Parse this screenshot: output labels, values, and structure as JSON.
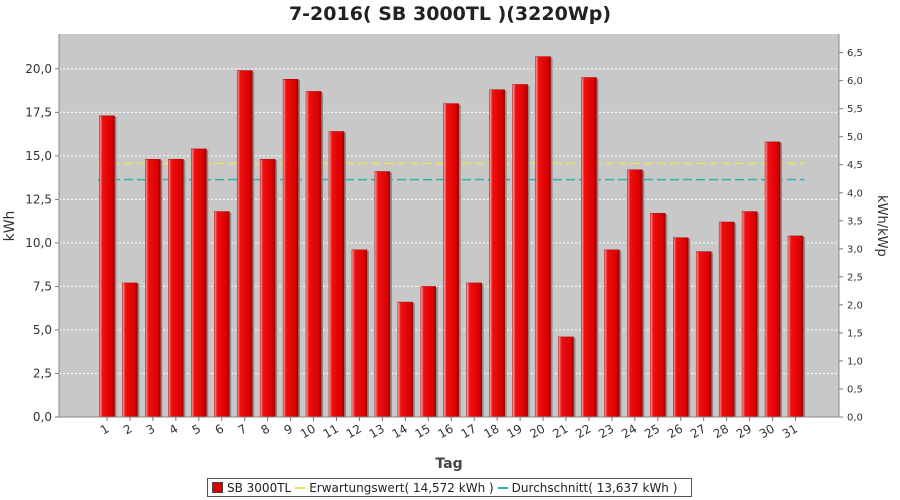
{
  "chart_data": {
    "type": "bar",
    "title": "7-2016( SB 3000TL )(3220Wp)",
    "xlabel": "Tag",
    "ylabel": "kWh",
    "y2label": "kWh/kWp",
    "categories": [
      "1",
      "2",
      "3",
      "4",
      "5",
      "6",
      "7",
      "8",
      "9",
      "10",
      "11",
      "12",
      "13",
      "14",
      "15",
      "16",
      "17",
      "18",
      "19",
      "20",
      "21",
      "22",
      "23",
      "24",
      "25",
      "26",
      "27",
      "28",
      "29",
      "30",
      "31"
    ],
    "series": [
      {
        "name": "SB 3000TL",
        "color": "#dd0000",
        "values": [
          17.3,
          7.7,
          14.8,
          14.8,
          15.4,
          11.8,
          19.9,
          14.8,
          19.4,
          18.7,
          16.4,
          9.6,
          14.1,
          6.6,
          7.5,
          18.0,
          7.7,
          18.8,
          19.1,
          20.7,
          4.6,
          19.5,
          9.6,
          14.2,
          11.7,
          10.3,
          9.5,
          11.2,
          11.8,
          15.8,
          10.4
        ]
      }
    ],
    "reference_lines": [
      {
        "name": "Erwartungswert( 14,572 kWh )",
        "value": 14.572,
        "color": "#f0e060"
      },
      {
        "name": "Durchschnitt( 13,637 kWh )",
        "value": 13.637,
        "color": "#30b0b0"
      }
    ],
    "ylim": [
      0,
      22
    ],
    "yticks": [
      "0,0",
      "2,5",
      "5,0",
      "7,5",
      "10,0",
      "12,5",
      "15,0",
      "17,5",
      "20,0"
    ],
    "y2lim": [
      0,
      6.8323
    ],
    "y2ticks": [
      "0,0",
      "0,5",
      "1,0",
      "1,5",
      "2,0",
      "2,5",
      "3,0",
      "3,5",
      "4,0",
      "4,5",
      "5,0",
      "5,5",
      "6,0",
      "6,5"
    ],
    "grid": true,
    "legend_position": "bottom"
  }
}
